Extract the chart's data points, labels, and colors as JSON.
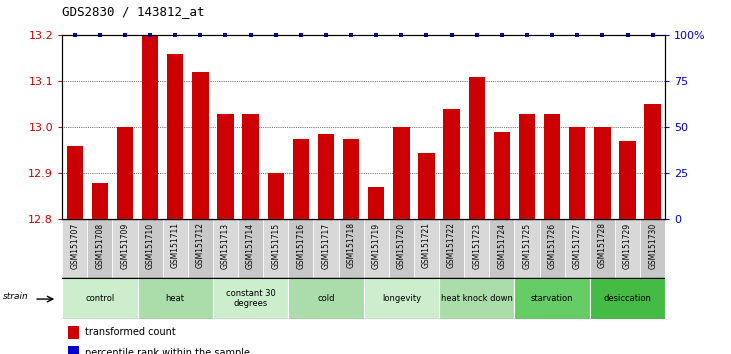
{
  "title": "GDS2830 / 143812_at",
  "samples": [
    "GSM151707",
    "GSM151708",
    "GSM151709",
    "GSM151710",
    "GSM151711",
    "GSM151712",
    "GSM151713",
    "GSM151714",
    "GSM151715",
    "GSM151716",
    "GSM151717",
    "GSM151718",
    "GSM151719",
    "GSM151720",
    "GSM151721",
    "GSM151722",
    "GSM151723",
    "GSM151724",
    "GSM151725",
    "GSM151726",
    "GSM151727",
    "GSM151728",
    "GSM151729",
    "GSM151730"
  ],
  "values": [
    12.96,
    12.88,
    13.0,
    13.2,
    13.16,
    13.12,
    13.03,
    13.03,
    12.9,
    12.975,
    12.985,
    12.975,
    12.87,
    13.0,
    12.945,
    13.04,
    13.11,
    12.99,
    13.03,
    13.03,
    13.0,
    13.0,
    12.97,
    13.05
  ],
  "ylim": [
    12.8,
    13.2
  ],
  "yticks": [
    12.8,
    12.9,
    13.0,
    13.1,
    13.2
  ],
  "right_yticks": [
    0,
    25,
    50,
    75,
    100
  ],
  "right_yticklabels": [
    "0",
    "25",
    "50",
    "75",
    "100%"
  ],
  "bar_color": "#cc0000",
  "dot_color": "#0000cc",
  "groups": [
    {
      "label": "control",
      "start": 0,
      "end": 3,
      "color": "#cceecc"
    },
    {
      "label": "heat",
      "start": 3,
      "end": 6,
      "color": "#aaddaa"
    },
    {
      "label": "constant 30\ndegrees",
      "start": 6,
      "end": 9,
      "color": "#cceecc"
    },
    {
      "label": "cold",
      "start": 9,
      "end": 12,
      "color": "#aaddaa"
    },
    {
      "label": "longevity",
      "start": 12,
      "end": 15,
      "color": "#cceecc"
    },
    {
      "label": "heat knock down",
      "start": 15,
      "end": 18,
      "color": "#aaddaa"
    },
    {
      "label": "starvation",
      "start": 18,
      "end": 21,
      "color": "#66cc66"
    },
    {
      "label": "desiccation",
      "start": 21,
      "end": 24,
      "color": "#44bb44"
    }
  ],
  "sample_bg_colors": [
    "#d8d8d8",
    "#c8c8c8"
  ]
}
